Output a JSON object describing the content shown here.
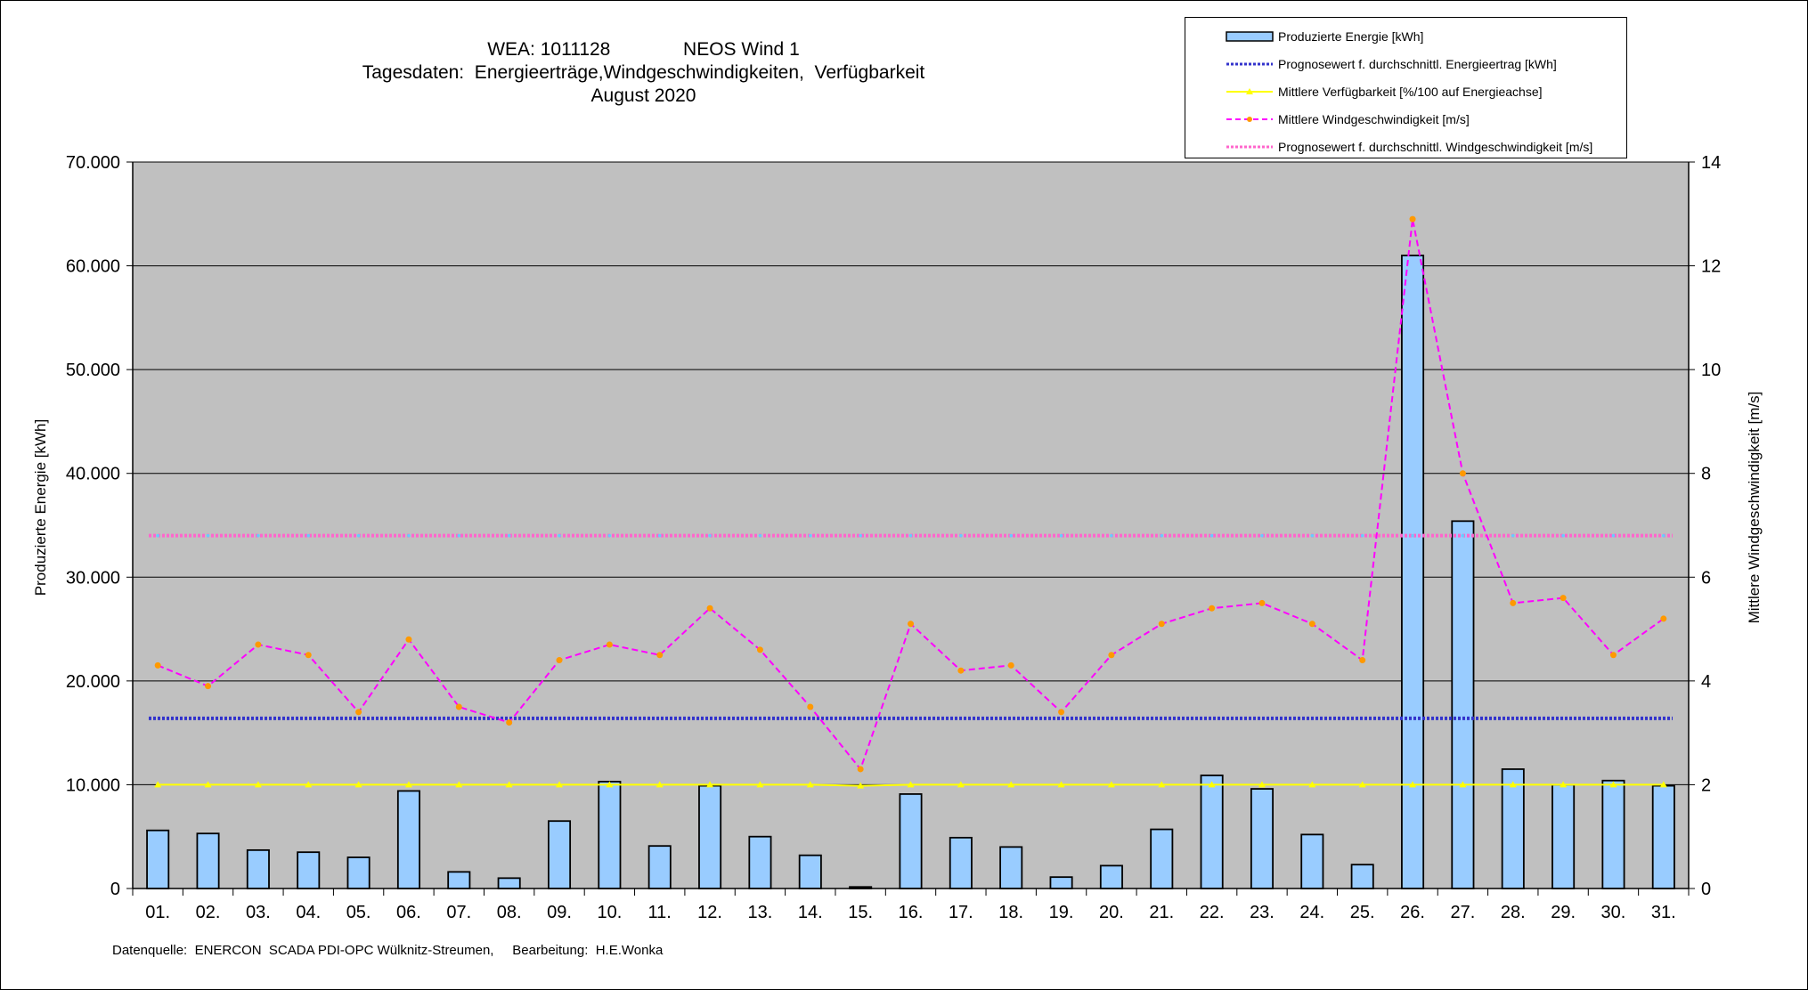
{
  "titles": {
    "line1_left": "WEA: 1011128",
    "line1_right": "NEOS Wind 1",
    "line2": "Tagesdaten:  Energieerträge,Windgeschwindigkeiten,  Verfügbarkeit",
    "line3": "August 2020"
  },
  "footer": "Datenquelle:  ENERCON  SCADA PDI-OPC Wülknitz-Streumen,     Bearbeitung:  H.E.Wonka",
  "colors": {
    "plot_bg": "#c0c0c0",
    "bar_fill": "#99ccff",
    "energy_forecast": "#3333cc",
    "availability": "#ffff00",
    "wind": "#ff00ff",
    "wind_marker": "#ff9900",
    "wind_forecast": "#ff66cc"
  },
  "chart_data": {
    "type": "bar",
    "categories": [
      "01.",
      "02.",
      "03.",
      "04.",
      "05.",
      "06.",
      "07.",
      "08.",
      "09.",
      "10.",
      "11.",
      "12.",
      "13.",
      "14.",
      "15.",
      "16.",
      "17.",
      "18.",
      "19.",
      "20.",
      "21.",
      "22.",
      "23.",
      "24.",
      "25.",
      "26.",
      "27.",
      "28.",
      "29.",
      "30.",
      "31."
    ],
    "ylabel_left": "Produzierte Energie [kWh]",
    "ylabel_right": "Mittlere Windgeschwindigkeit [m/s]",
    "ylim_left": [
      0,
      70000
    ],
    "ylim_right": [
      0,
      14
    ],
    "yticks_left": [
      "0",
      "10.000",
      "20.000",
      "30.000",
      "40.000",
      "50.000",
      "60.000",
      "70.000"
    ],
    "yticks_right": [
      "0",
      "2",
      "4",
      "6",
      "8",
      "10",
      "12",
      "14"
    ],
    "grid": true,
    "legend_position": "top-right",
    "series": [
      {
        "name": "Produzierte Energie [kWh]",
        "kind": "bar",
        "axis": "left",
        "values": [
          5600,
          5300,
          3700,
          3500,
          3000,
          9400,
          1600,
          1000,
          6500,
          10300,
          4100,
          9900,
          5000,
          3200,
          150,
          9100,
          4900,
          4000,
          1100,
          2200,
          5700,
          10900,
          9600,
          5200,
          2300,
          61000,
          35400,
          11500,
          10000,
          10400,
          9900
        ]
      },
      {
        "name": "Prognosewert f. durchschnittl. Energieertrag  [kWh]",
        "kind": "line",
        "axis": "left",
        "values": [
          16400,
          16400,
          16400,
          16400,
          16400,
          16400,
          16400,
          16400,
          16400,
          16400,
          16400,
          16400,
          16400,
          16400,
          16400,
          16400,
          16400,
          16400,
          16400,
          16400,
          16400,
          16400,
          16400,
          16400,
          16400,
          16400,
          16400,
          16400,
          16400,
          16400,
          16400
        ]
      },
      {
        "name": "Mittlere Verfügbarkeit [%/100 auf Energieachse]",
        "kind": "line",
        "axis": "left",
        "values": [
          10000,
          10000,
          10000,
          10000,
          10000,
          10000,
          10000,
          10000,
          10000,
          10000,
          10000,
          10000,
          10000,
          10000,
          9900,
          10000,
          10000,
          10000,
          10000,
          10000,
          10000,
          10000,
          10000,
          10000,
          10000,
          10000,
          10000,
          10000,
          10000,
          10000,
          10000
        ]
      },
      {
        "name": "Mittlere Windgeschwindigkeit [m/s]",
        "kind": "line",
        "axis": "right",
        "values": [
          4.3,
          3.9,
          4.7,
          4.5,
          3.4,
          4.8,
          3.5,
          3.2,
          4.4,
          4.7,
          4.5,
          5.4,
          4.6,
          3.5,
          2.3,
          5.1,
          4.2,
          4.3,
          3.4,
          4.5,
          5.1,
          5.4,
          5.5,
          5.1,
          4.4,
          12.9,
          8.0,
          5.5,
          5.6,
          4.5,
          5.2
        ]
      },
      {
        "name": "Prognosewert f. durchschnittl. Windgeschwindigkeit [m/s]",
        "kind": "line",
        "axis": "right",
        "values": [
          6.8,
          6.8,
          6.8,
          6.8,
          6.8,
          6.8,
          6.8,
          6.8,
          6.8,
          6.8,
          6.8,
          6.8,
          6.8,
          6.8,
          6.8,
          6.8,
          6.8,
          6.8,
          6.8,
          6.8,
          6.8,
          6.8,
          6.8,
          6.8,
          6.8,
          6.8,
          6.8,
          6.8,
          6.8,
          6.8,
          6.8
        ]
      }
    ]
  }
}
